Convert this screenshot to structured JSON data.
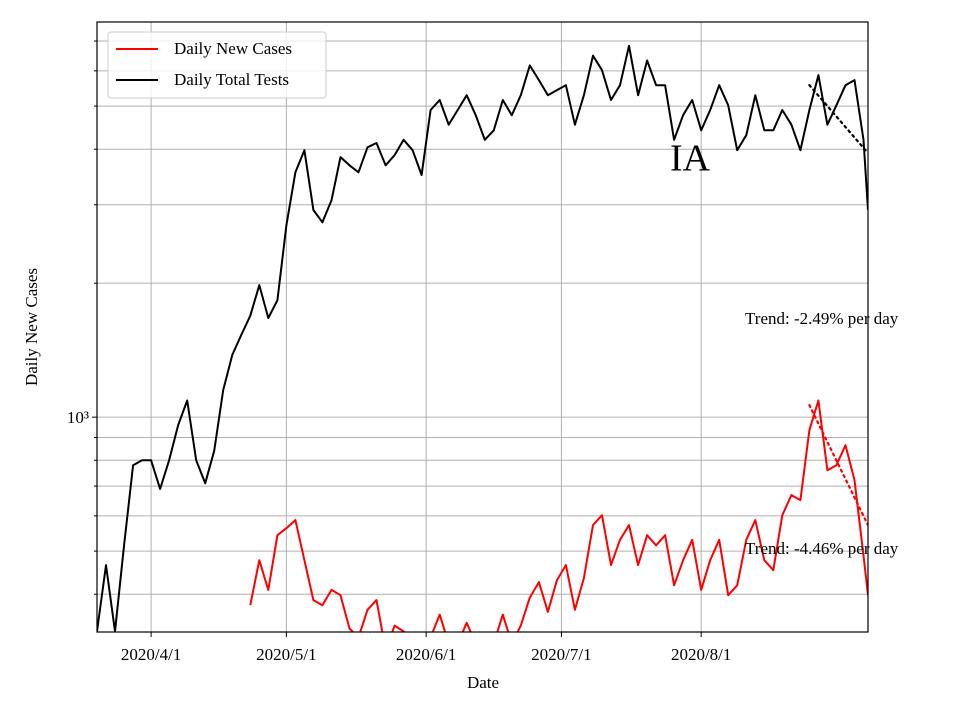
{
  "chart_data": {
    "type": "line",
    "annotation": "IA",
    "xlabel": "Date",
    "ylabel": "Daily New Cases",
    "log_y": true,
    "grid": true,
    "legend": "upper left",
    "xlim": [
      "2020-03-20",
      "2020-09-07"
    ],
    "xticks": [
      {
        "value": "2020-04-01",
        "label": "2020/4/1"
      },
      {
        "value": "2020-05-01",
        "label": "2020/5/1"
      },
      {
        "value": "2020-06-01",
        "label": "2020/6/1"
      },
      {
        "value": "2020-07-01",
        "label": "2020/7/1"
      },
      {
        "value": "2020-08-01",
        "label": "2020/8/1"
      }
    ],
    "ylim": [
      329,
      7725
    ],
    "yticks": [
      {
        "value": 1000,
        "label": "10³"
      }
    ],
    "yminorticks": [
      400,
      500,
      600,
      700,
      800,
      900,
      2000,
      3000,
      4000,
      5000,
      6000,
      7000
    ],
    "x": [
      "2020-03-20",
      "2020-03-22",
      "2020-03-24",
      "2020-03-26",
      "2020-03-28",
      "2020-03-30",
      "2020-04-01",
      "2020-04-03",
      "2020-04-05",
      "2020-04-07",
      "2020-04-09",
      "2020-04-11",
      "2020-04-13",
      "2020-04-15",
      "2020-04-17",
      "2020-04-19",
      "2020-04-21",
      "2020-04-23",
      "2020-04-25",
      "2020-04-27",
      "2020-04-29",
      "2020-05-01",
      "2020-05-03",
      "2020-05-05",
      "2020-05-07",
      "2020-05-09",
      "2020-05-11",
      "2020-05-13",
      "2020-05-15",
      "2020-05-17",
      "2020-05-19",
      "2020-05-21",
      "2020-05-23",
      "2020-05-25",
      "2020-05-27",
      "2020-05-29",
      "2020-05-31",
      "2020-06-02",
      "2020-06-04",
      "2020-06-06",
      "2020-06-08",
      "2020-06-10",
      "2020-06-12",
      "2020-06-14",
      "2020-06-16",
      "2020-06-18",
      "2020-06-20",
      "2020-06-22",
      "2020-06-24",
      "2020-06-26",
      "2020-06-28",
      "2020-06-30",
      "2020-07-02",
      "2020-07-04",
      "2020-07-06",
      "2020-07-08",
      "2020-07-10",
      "2020-07-12",
      "2020-07-14",
      "2020-07-16",
      "2020-07-18",
      "2020-07-20",
      "2020-07-22",
      "2020-07-24",
      "2020-07-26",
      "2020-07-28",
      "2020-07-30",
      "2020-08-01",
      "2020-08-03",
      "2020-08-05",
      "2020-08-07",
      "2020-08-09",
      "2020-08-11",
      "2020-08-13",
      "2020-08-15",
      "2020-08-17",
      "2020-08-19",
      "2020-08-21",
      "2020-08-23",
      "2020-08-25",
      "2020-08-27",
      "2020-08-29",
      "2020-08-31",
      "2020-09-02",
      "2020-09-04",
      "2020-09-06",
      "2020-09-07"
    ],
    "series": [
      {
        "name": "Daily New Cases",
        "color": "#ff0000",
        "values": [
          null,
          null,
          null,
          null,
          null,
          null,
          null,
          null,
          null,
          null,
          null,
          null,
          null,
          null,
          null,
          null,
          null,
          378,
          477,
          409,
          543,
          563,
          587,
          477,
          388,
          378,
          409,
          398,
          335,
          320,
          369,
          388,
          300,
          340,
          330,
          310,
          310,
          320,
          360,
          310,
          310,
          345,
          310,
          310,
          310,
          360,
          310,
          340,
          393,
          426,
          365,
          430,
          465,
          369,
          435,
          572,
          602,
          465,
          530,
          572,
          465,
          543,
          515,
          543,
          419,
          477,
          530,
          409,
          477,
          530,
          398,
          419,
          530,
          587,
          477,
          453,
          602,
          668,
          651,
          935,
          1090,
          760,
          780,
          865,
          722,
          489,
          398
        ]
      },
      {
        "name": "Daily Total Tests",
        "color": "#000000",
        "values": [
          330,
          465,
          330,
          516,
          780,
          800,
          800,
          690,
          800,
          960,
          1090,
          800,
          710,
          840,
          1150,
          1380,
          1530,
          1690,
          1980,
          1670,
          1830,
          2700,
          3550,
          3980,
          2920,
          2740,
          3070,
          3840,
          3680,
          3550,
          4040,
          4130,
          3680,
          3880,
          4200,
          3980,
          3500,
          4900,
          5160,
          4540,
          4900,
          5290,
          4770,
          4200,
          4410,
          5160,
          4770,
          5290,
          6170,
          5720,
          5290,
          5430,
          5570,
          4540,
          5290,
          6490,
          6020,
          5160,
          5570,
          6830,
          5290,
          6330,
          5570,
          5570,
          4200,
          4770,
          5160,
          4410,
          4900,
          5570,
          5020,
          3980,
          4300,
          5290,
          4410,
          4410,
          4900,
          4540,
          3980,
          4900,
          5870,
          4540,
          5020,
          5570,
          5720,
          4200,
          2920
        ]
      }
    ],
    "trends": [
      {
        "text": "Trend: -2.49% per day",
        "color": "#000000",
        "x": [
          "2020-08-25",
          "2020-09-07"
        ],
        "values": [
          5572,
          3920
        ]
      },
      {
        "text": "Trend: -4.46% per day",
        "color": "#ff0000",
        "x": [
          "2020-08-25",
          "2020-09-07"
        ],
        "values": [
          1064,
          572
        ]
      }
    ]
  }
}
